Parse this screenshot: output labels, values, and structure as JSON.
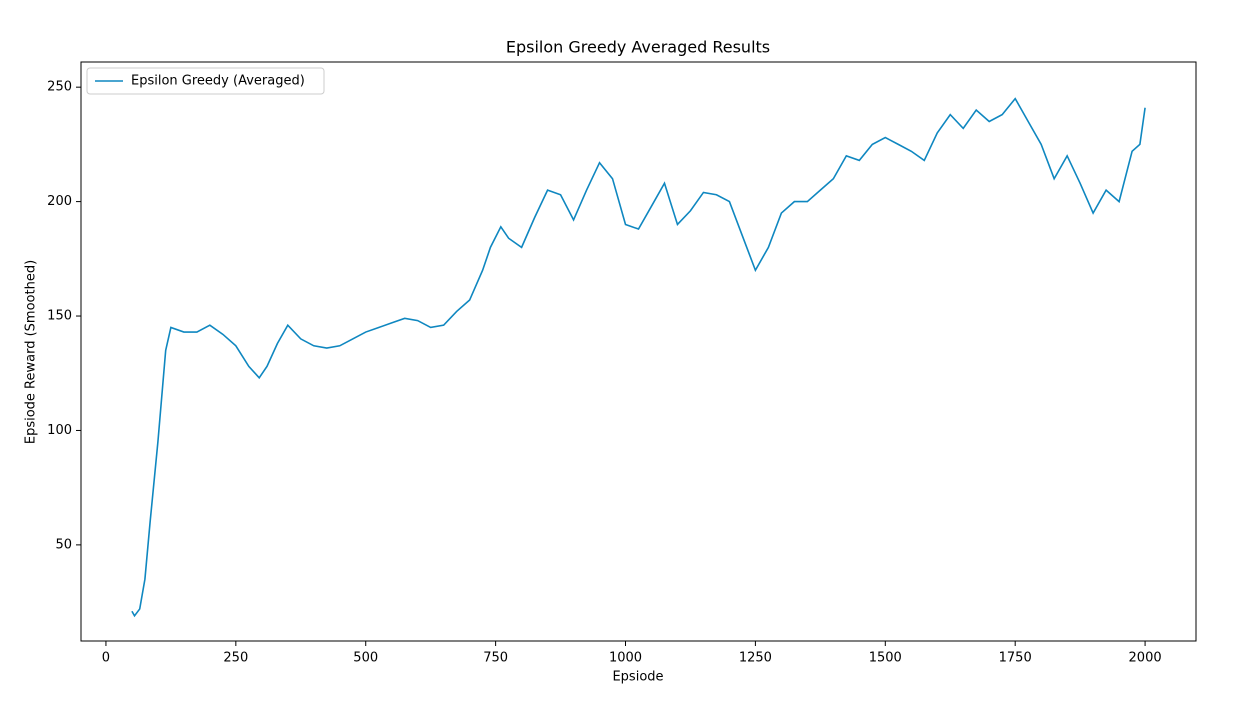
{
  "chart_data": {
    "type": "line",
    "title": "Epsilon Greedy Averaged Results",
    "xlabel": "Epsiode",
    "ylabel": "Epsiode Reward (Smoothed)",
    "x": [
      50,
      55,
      65,
      75,
      85,
      100,
      115,
      125,
      150,
      175,
      200,
      225,
      250,
      275,
      295,
      310,
      330,
      350,
      375,
      400,
      425,
      450,
      475,
      500,
      525,
      550,
      575,
      600,
      625,
      650,
      675,
      700,
      725,
      740,
      760,
      775,
      800,
      825,
      850,
      875,
      900,
      925,
      950,
      975,
      1000,
      1025,
      1050,
      1075,
      1100,
      1125,
      1150,
      1175,
      1200,
      1225,
      1250,
      1275,
      1300,
      1325,
      1350,
      1375,
      1400,
      1425,
      1450,
      1475,
      1500,
      1525,
      1550,
      1575,
      1600,
      1625,
      1650,
      1675,
      1700,
      1725,
      1750,
      1775,
      1800,
      1825,
      1850,
      1875,
      1900,
      1925,
      1950,
      1975,
      1990,
      2000
    ],
    "series": [
      {
        "name": "Epsilon Greedy (Averaged)",
        "color": "#0f87c0",
        "values": [
          21,
          19,
          22,
          35,
          60,
          95,
          135,
          145,
          143,
          143,
          146,
          142,
          137,
          128,
          123,
          128,
          138,
          146,
          140,
          137,
          136,
          137,
          140,
          143,
          145,
          147,
          149,
          148,
          145,
          146,
          152,
          157,
          170,
          180,
          189,
          184,
          180,
          193,
          205,
          203,
          192,
          205,
          217,
          210,
          190,
          188,
          198,
          208,
          190,
          196,
          204,
          203,
          200,
          185,
          170,
          180,
          195,
          200,
          200,
          205,
          210,
          220,
          218,
          225,
          228,
          225,
          222,
          218,
          230,
          238,
          232,
          240,
          235,
          238,
          245,
          235,
          225,
          210,
          220,
          208,
          195,
          205,
          200,
          222,
          225,
          241
        ]
      }
    ],
    "xlim": [
      -48,
      2098
    ],
    "ylim": [
      8,
      261
    ],
    "xticks": [
      0,
      250,
      500,
      750,
      1000,
      1250,
      1500,
      1750,
      2000
    ],
    "yticks": [
      50,
      100,
      150,
      200,
      250
    ],
    "grid": false,
    "legend": "upper left"
  }
}
